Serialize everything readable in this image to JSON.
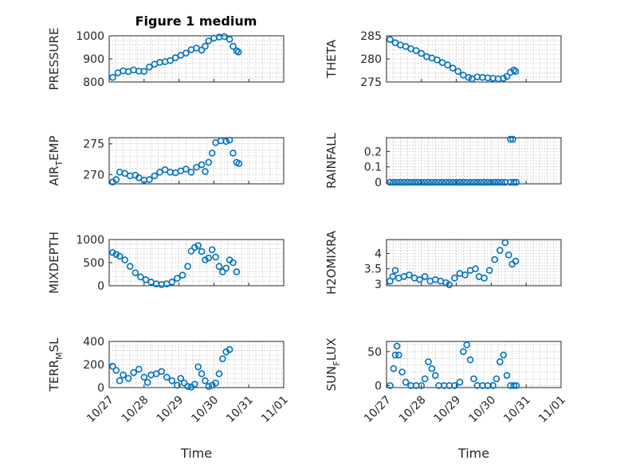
{
  "figure": {
    "title": "Figure 1 medium",
    "marker_color": "#0072BD",
    "axis_color": "#262626"
  },
  "chart_data": [
    {
      "type": "scatter",
      "name": "PRESSURE",
      "ylabel": "PRESSURE",
      "xlabel": "",
      "ylim": [
        800,
        1000
      ],
      "yticks": [
        800,
        900,
        1000
      ],
      "ytick_labels": [
        "800",
        "900",
        "1000"
      ],
      "xlim": [
        0,
        5
      ],
      "xticks": [
        0,
        1,
        2,
        3,
        4,
        5
      ],
      "xtick_labels": [
        "10/27",
        "10/28",
        "10/29",
        "10/30",
        "10/31",
        "11/01"
      ],
      "show_xtick_labels": false,
      "grid": true,
      "points": [
        [
          0.1,
          820
        ],
        [
          0.25,
          840
        ],
        [
          0.4,
          848
        ],
        [
          0.55,
          845
        ],
        [
          0.7,
          852
        ],
        [
          0.85,
          847
        ],
        [
          1.0,
          846
        ],
        [
          1.15,
          865
        ],
        [
          1.3,
          877
        ],
        [
          1.45,
          885
        ],
        [
          1.6,
          888
        ],
        [
          1.75,
          893
        ],
        [
          1.9,
          905
        ],
        [
          2.05,
          916
        ],
        [
          2.2,
          925
        ],
        [
          2.35,
          940
        ],
        [
          2.5,
          947
        ],
        [
          2.65,
          938
        ],
        [
          2.75,
          955
        ],
        [
          2.85,
          978
        ],
        [
          3.0,
          990
        ],
        [
          3.15,
          995
        ],
        [
          3.3,
          997
        ],
        [
          3.45,
          985
        ],
        [
          3.55,
          955
        ],
        [
          3.65,
          935
        ],
        [
          3.7,
          930
        ]
      ]
    },
    {
      "type": "scatter",
      "name": "THETA",
      "ylabel": "THETA",
      "xlabel": "",
      "ylim": [
        275,
        285
      ],
      "yticks": [
        275,
        280,
        285
      ],
      "ytick_labels": [
        "275",
        "280",
        "285"
      ],
      "xlim": [
        0,
        5
      ],
      "xticks": [
        0,
        1,
        2,
        3,
        4,
        5
      ],
      "xtick_labels": [
        "10/27",
        "10/28",
        "10/29",
        "10/30",
        "10/31",
        "11/01"
      ],
      "show_xtick_labels": false,
      "grid": true,
      "points": [
        [
          0.1,
          284.2
        ],
        [
          0.25,
          283.5
        ],
        [
          0.4,
          283.0
        ],
        [
          0.55,
          282.7
        ],
        [
          0.7,
          282.2
        ],
        [
          0.85,
          281.8
        ],
        [
          1.0,
          281.2
        ],
        [
          1.15,
          280.5
        ],
        [
          1.3,
          280.2
        ],
        [
          1.45,
          279.8
        ],
        [
          1.6,
          279.2
        ],
        [
          1.75,
          278.7
        ],
        [
          1.9,
          278.0
        ],
        [
          2.05,
          277.3
        ],
        [
          2.2,
          276.5
        ],
        [
          2.35,
          276.0
        ],
        [
          2.45,
          275.7
        ],
        [
          2.6,
          276.1
        ],
        [
          2.75,
          276.0
        ],
        [
          2.9,
          275.9
        ],
        [
          3.05,
          275.8
        ],
        [
          3.2,
          275.7
        ],
        [
          3.35,
          275.8
        ],
        [
          3.45,
          276.2
        ],
        [
          3.55,
          277.1
        ],
        [
          3.65,
          277.6
        ],
        [
          3.7,
          277.3
        ]
      ]
    },
    {
      "type": "scatter",
      "name": "AIR_TEMP",
      "ylabel": "AIR_TEMP",
      "xlabel": "",
      "ylim": [
        268.5,
        276
      ],
      "yticks": [
        270,
        275
      ],
      "ytick_labels": [
        "270",
        "275"
      ],
      "xlim": [
        0,
        5
      ],
      "xticks": [
        0,
        1,
        2,
        3,
        4,
        5
      ],
      "xtick_labels": [
        "10/27",
        "10/28",
        "10/29",
        "10/30",
        "10/31",
        "11/01"
      ],
      "show_xtick_labels": false,
      "grid": true,
      "points": [
        [
          0.1,
          268.8
        ],
        [
          0.2,
          269.2
        ],
        [
          0.3,
          270.4
        ],
        [
          0.45,
          270.2
        ],
        [
          0.6,
          269.8
        ],
        [
          0.75,
          269.9
        ],
        [
          0.85,
          269.5
        ],
        [
          1.0,
          269.1
        ],
        [
          1.15,
          269.2
        ],
        [
          1.3,
          269.8
        ],
        [
          1.45,
          270.4
        ],
        [
          1.6,
          270.8
        ],
        [
          1.75,
          270.4
        ],
        [
          1.9,
          270.3
        ],
        [
          2.05,
          270.6
        ],
        [
          2.2,
          270.9
        ],
        [
          2.35,
          270.4
        ],
        [
          2.5,
          271.2
        ],
        [
          2.65,
          271.6
        ],
        [
          2.75,
          270.5
        ],
        [
          2.85,
          272.0
        ],
        [
          2.95,
          273.5
        ],
        [
          3.05,
          275.2
        ],
        [
          3.2,
          275.5
        ],
        [
          3.35,
          275.4
        ],
        [
          3.45,
          275.6
        ],
        [
          3.55,
          273.5
        ],
        [
          3.65,
          272.0
        ],
        [
          3.72,
          271.8
        ]
      ]
    },
    {
      "type": "scatter",
      "name": "RAINFALL",
      "ylabel": "RAINFALL",
      "xlabel": "",
      "ylim": [
        -0.01,
        0.29
      ],
      "yticks": [
        0,
        0.1,
        0.2
      ],
      "ytick_labels": [
        "0",
        "0.1",
        "0.2"
      ],
      "xlim": [
        0,
        5
      ],
      "xticks": [
        0,
        1,
        2,
        3,
        4,
        5
      ],
      "xtick_labels": [
        "10/27",
        "10/28",
        "10/29",
        "10/30",
        "10/31",
        "11/01"
      ],
      "show_xtick_labels": false,
      "grid": true,
      "points": [
        [
          0.1,
          0
        ],
        [
          0.2,
          0
        ],
        [
          0.3,
          0
        ],
        [
          0.4,
          0
        ],
        [
          0.5,
          0
        ],
        [
          0.6,
          0
        ],
        [
          0.7,
          0
        ],
        [
          0.8,
          0
        ],
        [
          0.9,
          0
        ],
        [
          1.0,
          0
        ],
        [
          1.1,
          0
        ],
        [
          1.2,
          0
        ],
        [
          1.3,
          0
        ],
        [
          1.4,
          0
        ],
        [
          1.5,
          0
        ],
        [
          1.6,
          0
        ],
        [
          1.7,
          0
        ],
        [
          1.8,
          0
        ],
        [
          1.9,
          0
        ],
        [
          2.0,
          0
        ],
        [
          2.1,
          0
        ],
        [
          2.2,
          0
        ],
        [
          2.3,
          0
        ],
        [
          2.4,
          0
        ],
        [
          2.5,
          0
        ],
        [
          2.6,
          0
        ],
        [
          2.7,
          0
        ],
        [
          2.8,
          0
        ],
        [
          2.9,
          0
        ],
        [
          3.0,
          0
        ],
        [
          3.1,
          0
        ],
        [
          3.2,
          0
        ],
        [
          3.3,
          0
        ],
        [
          3.4,
          0
        ],
        [
          3.55,
          0
        ],
        [
          3.65,
          0
        ],
        [
          3.72,
          0
        ],
        [
          3.55,
          0.28
        ],
        [
          3.62,
          0.28
        ]
      ]
    },
    {
      "type": "scatter",
      "name": "MIXDEPTH",
      "ylabel": "MIXDEPTH",
      "xlabel": "",
      "ylim": [
        0,
        1000
      ],
      "yticks": [
        0,
        500,
        1000
      ],
      "ytick_labels": [
        "0",
        "500",
        "1000"
      ],
      "xlim": [
        0,
        5
      ],
      "xticks": [
        0,
        1,
        2,
        3,
        4,
        5
      ],
      "xtick_labels": [
        "10/27",
        "10/28",
        "10/29",
        "10/30",
        "10/31",
        "11/01"
      ],
      "show_xtick_labels": false,
      "grid": true,
      "points": [
        [
          0.1,
          720
        ],
        [
          0.2,
          680
        ],
        [
          0.3,
          640
        ],
        [
          0.45,
          560
        ],
        [
          0.6,
          420
        ],
        [
          0.75,
          280
        ],
        [
          0.9,
          190
        ],
        [
          1.05,
          130
        ],
        [
          1.2,
          80
        ],
        [
          1.35,
          40
        ],
        [
          1.5,
          25
        ],
        [
          1.65,
          40
        ],
        [
          1.8,
          80
        ],
        [
          1.95,
          160
        ],
        [
          2.1,
          230
        ],
        [
          2.25,
          420
        ],
        [
          2.35,
          750
        ],
        [
          2.45,
          830
        ],
        [
          2.55,
          870
        ],
        [
          2.65,
          740
        ],
        [
          2.75,
          560
        ],
        [
          2.85,
          600
        ],
        [
          2.95,
          780
        ],
        [
          3.05,
          620
        ],
        [
          3.15,
          420
        ],
        [
          3.25,
          300
        ],
        [
          3.35,
          380
        ],
        [
          3.45,
          560
        ],
        [
          3.55,
          500
        ],
        [
          3.65,
          300
        ]
      ]
    },
    {
      "type": "scatter",
      "name": "H2OMIXRA",
      "ylabel": "H2OMIXRA",
      "xlabel": "",
      "ylim": [
        2.95,
        4.45
      ],
      "yticks": [
        3,
        3.5,
        4
      ],
      "ytick_labels": [
        "3",
        "3.5",
        "4"
      ],
      "xlim": [
        0,
        5
      ],
      "xticks": [
        0,
        1,
        2,
        3,
        4,
        5
      ],
      "xtick_labels": [
        "10/27",
        "10/28",
        "10/29",
        "10/30",
        "10/31",
        "11/01"
      ],
      "show_xtick_labels": false,
      "grid": true,
      "points": [
        [
          0.1,
          3.1
        ],
        [
          0.18,
          3.25
        ],
        [
          0.25,
          3.45
        ],
        [
          0.35,
          3.2
        ],
        [
          0.5,
          3.25
        ],
        [
          0.65,
          3.3
        ],
        [
          0.8,
          3.2
        ],
        [
          0.95,
          3.15
        ],
        [
          1.1,
          3.25
        ],
        [
          1.25,
          3.1
        ],
        [
          1.4,
          3.15
        ],
        [
          1.55,
          3.1
        ],
        [
          1.7,
          3.05
        ],
        [
          1.8,
          2.98
        ],
        [
          1.95,
          3.2
        ],
        [
          2.1,
          3.35
        ],
        [
          2.25,
          3.3
        ],
        [
          2.4,
          3.45
        ],
        [
          2.55,
          3.5
        ],
        [
          2.65,
          3.25
        ],
        [
          2.8,
          3.2
        ],
        [
          2.95,
          3.45
        ],
        [
          3.1,
          3.8
        ],
        [
          3.25,
          4.1
        ],
        [
          3.4,
          4.35
        ],
        [
          3.5,
          3.95
        ],
        [
          3.6,
          3.65
        ],
        [
          3.7,
          3.75
        ]
      ]
    },
    {
      "type": "scatter",
      "name": "TERR_MSL",
      "ylabel": "TERR_MSL",
      "xlabel": "Time",
      "ylim": [
        0,
        400
      ],
      "yticks": [
        0,
        200,
        400
      ],
      "ytick_labels": [
        "0",
        "200",
        "400"
      ],
      "xlim": [
        0,
        5
      ],
      "xticks": [
        0,
        1,
        2,
        3,
        4,
        5
      ],
      "xtick_labels": [
        "10/27",
        "10/28",
        "10/29",
        "10/30",
        "10/31",
        "11/01"
      ],
      "show_xtick_labels": true,
      "grid": true,
      "points": [
        [
          0.1,
          185
        ],
        [
          0.2,
          150
        ],
        [
          0.3,
          60
        ],
        [
          0.4,
          110
        ],
        [
          0.55,
          80
        ],
        [
          0.7,
          130
        ],
        [
          0.85,
          160
        ],
        [
          1.0,
          90
        ],
        [
          1.1,
          45
        ],
        [
          1.2,
          110
        ],
        [
          1.35,
          120
        ],
        [
          1.5,
          140
        ],
        [
          1.65,
          90
        ],
        [
          1.8,
          60
        ],
        [
          1.95,
          20
        ],
        [
          2.05,
          80
        ],
        [
          2.15,
          40
        ],
        [
          2.25,
          10
        ],
        [
          2.35,
          5
        ],
        [
          2.45,
          30
        ],
        [
          2.55,
          180
        ],
        [
          2.65,
          120
        ],
        [
          2.75,
          60
        ],
        [
          2.85,
          10
        ],
        [
          2.95,
          20
        ],
        [
          3.05,
          40
        ],
        [
          3.15,
          120
        ],
        [
          3.25,
          250
        ],
        [
          3.35,
          310
        ],
        [
          3.45,
          330
        ]
      ]
    },
    {
      "type": "scatter",
      "name": "SUN_FLUX",
      "ylabel": "SUN_FLUX",
      "xlabel": "Time",
      "ylim": [
        -3,
        65
      ],
      "yticks": [
        0,
        50
      ],
      "ytick_labels": [
        "0",
        "50"
      ],
      "xlim": [
        0,
        5
      ],
      "xticks": [
        0,
        1,
        2,
        3,
        4,
        5
      ],
      "xtick_labels": [
        "10/27",
        "10/28",
        "10/29",
        "10/30",
        "10/31",
        "11/01"
      ],
      "show_xtick_labels": true,
      "grid": true,
      "points": [
        [
          0.1,
          0
        ],
        [
          0.2,
          25
        ],
        [
          0.25,
          45
        ],
        [
          0.3,
          58
        ],
        [
          0.35,
          45
        ],
        [
          0.45,
          20
        ],
        [
          0.55,
          5
        ],
        [
          0.7,
          0
        ],
        [
          0.85,
          0
        ],
        [
          1.0,
          0
        ],
        [
          1.1,
          10
        ],
        [
          1.2,
          35
        ],
        [
          1.3,
          25
        ],
        [
          1.4,
          15
        ],
        [
          1.5,
          0
        ],
        [
          1.65,
          0
        ],
        [
          1.8,
          0
        ],
        [
          1.95,
          0
        ],
        [
          2.1,
          5
        ],
        [
          2.2,
          50
        ],
        [
          2.3,
          60
        ],
        [
          2.4,
          38
        ],
        [
          2.5,
          10
        ],
        [
          2.6,
          0
        ],
        [
          2.75,
          0
        ],
        [
          2.9,
          0
        ],
        [
          3.05,
          0
        ],
        [
          3.15,
          10
        ],
        [
          3.25,
          35
        ],
        [
          3.35,
          45
        ],
        [
          3.45,
          15
        ],
        [
          3.55,
          0
        ],
        [
          3.65,
          0
        ],
        [
          3.72,
          0
        ]
      ]
    }
  ]
}
